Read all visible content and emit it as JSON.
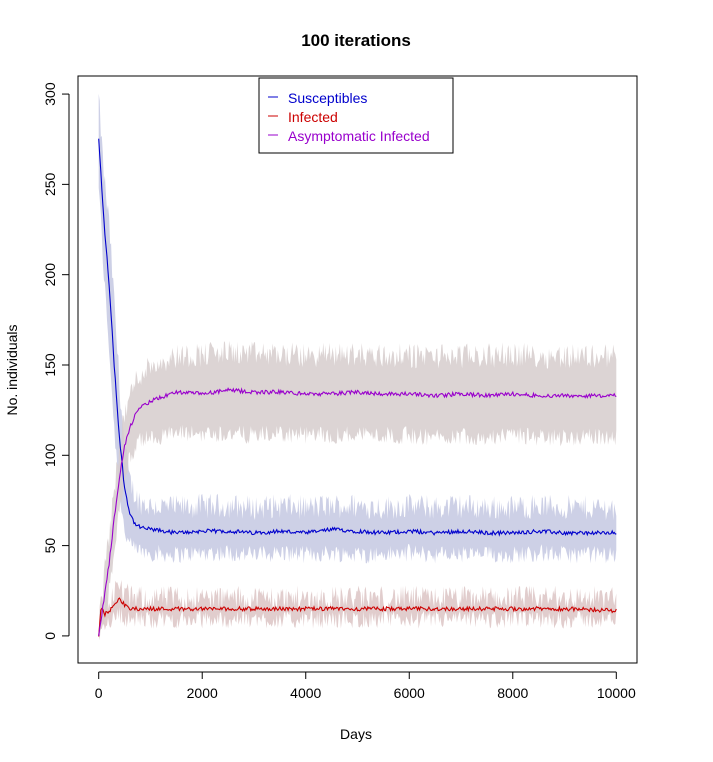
{
  "chart_data": {
    "type": "line",
    "title": "100  iterations",
    "xlabel": "Days",
    "ylabel": "No. individuals",
    "xlim": [
      -400,
      10400
    ],
    "ylim": [
      -15,
      310
    ],
    "x_ticks": [
      0,
      2000,
      4000,
      6000,
      8000,
      10000
    ],
    "y_ticks": [
      0,
      50,
      100,
      150,
      200,
      250,
      300
    ],
    "grid": false,
    "legend_position": "top-center",
    "series": [
      {
        "name": "Susceptibles",
        "color": "#0000cc",
        "band_color": "#c4c8e2",
        "x": [
          0,
          100,
          200,
          300,
          400,
          500,
          600,
          700,
          800,
          1000,
          1500,
          2000,
          2500,
          3000,
          3500,
          4000,
          4500,
          5000,
          5500,
          6000,
          6500,
          7000,
          7500,
          8000,
          8500,
          9000,
          9500,
          10000
        ],
        "mean": [
          275,
          230,
          195,
          150,
          110,
          82,
          68,
          62,
          60,
          59,
          57,
          58,
          58,
          57,
          58,
          57,
          59,
          58,
          57,
          58,
          57,
          58,
          57,
          57,
          58,
          57,
          57,
          57
        ],
        "lower": [
          250,
          200,
          160,
          115,
          80,
          58,
          50,
          48,
          47,
          46,
          45,
          46,
          46,
          45,
          46,
          45,
          46,
          45,
          45,
          46,
          45,
          45,
          45,
          45,
          46,
          45,
          45,
          45
        ],
        "upper": [
          298,
          255,
          228,
          185,
          140,
          105,
          86,
          78,
          74,
          72,
          71,
          72,
          72,
          71,
          72,
          71,
          72,
          72,
          71,
          72,
          71,
          72,
          71,
          71,
          72,
          71,
          71,
          71
        ]
      },
      {
        "name": "Infected",
        "color": "#cc0000",
        "band_color": "#dcc4c4",
        "x": [
          0,
          50,
          100,
          200,
          300,
          400,
          500,
          600,
          800,
          1000,
          1500,
          2000,
          3000,
          4000,
          5000,
          6000,
          7000,
          8000,
          9000,
          10000
        ],
        "mean": [
          0,
          17,
          12,
          13,
          18,
          21,
          17,
          15,
          15,
          15,
          15,
          15,
          15,
          15,
          15,
          15,
          15,
          15,
          15,
          14
        ],
        "lower": [
          0,
          8,
          7,
          8,
          10,
          12,
          10,
          9,
          9,
          9,
          9,
          9,
          9,
          9,
          9,
          9,
          9,
          9,
          9,
          9
        ],
        "upper": [
          1,
          24,
          18,
          20,
          25,
          27,
          24,
          21,
          21,
          21,
          21,
          21,
          21,
          21,
          21,
          21,
          21,
          21,
          21,
          21
        ]
      },
      {
        "name": "Asymptomatic Infected",
        "color": "#9900cc",
        "band_color": "#d6cccc",
        "x": [
          0,
          100,
          200,
          300,
          400,
          500,
          600,
          700,
          800,
          1000,
          1500,
          2000,
          2500,
          3000,
          3500,
          4000,
          4500,
          5000,
          5500,
          6000,
          6500,
          7000,
          7500,
          8000,
          8500,
          9000,
          9500,
          10000
        ],
        "mean": [
          0,
          20,
          40,
          65,
          88,
          105,
          115,
          122,
          126,
          130,
          135,
          134,
          136,
          135,
          135,
          134,
          134,
          135,
          134,
          134,
          133,
          134,
          133,
          134,
          133,
          133,
          133,
          133
        ],
        "lower": [
          0,
          8,
          25,
          48,
          70,
          88,
          98,
          104,
          108,
          110,
          112,
          112,
          112,
          111,
          112,
          111,
          111,
          112,
          111,
          111,
          110,
          111,
          110,
          111,
          110,
          110,
          110,
          110
        ],
        "upper": [
          2,
          32,
          55,
          82,
          105,
          122,
          133,
          140,
          145,
          150,
          155,
          156,
          157,
          156,
          156,
          155,
          156,
          156,
          155,
          155,
          155,
          155,
          155,
          156,
          155,
          155,
          155,
          155
        ]
      }
    ]
  }
}
